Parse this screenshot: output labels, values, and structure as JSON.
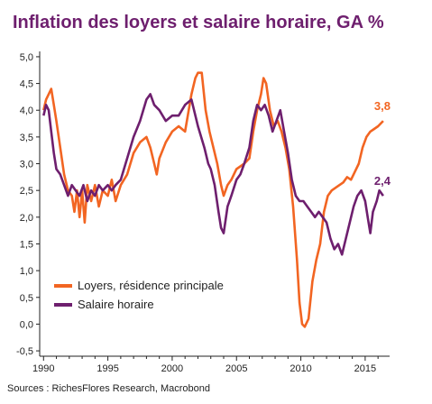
{
  "chart_data": {
    "type": "line",
    "title": "Inflation des loyers et salaire horaire, GA %",
    "source": "Sources : RichesFlores Research, Macrobond",
    "xlabel": "",
    "ylabel": "",
    "xlim": [
      1989.7,
      2016.9
    ],
    "ylim": [
      -0.6,
      5.1
    ],
    "yticks": [
      -0.5,
      0.0,
      0.5,
      1.0,
      1.5,
      2.0,
      2.5,
      3.0,
      3.5,
      4.0,
      4.5,
      5.0
    ],
    "ytick_labels": [
      "-0,5",
      "0,0",
      "0,5",
      "1,0",
      "1,5",
      "2,0",
      "2,5",
      "3,0",
      "3,5",
      "4,0",
      "4,5",
      "5,0"
    ],
    "xticks": [
      1990,
      1995,
      2000,
      2005,
      2010,
      2015
    ],
    "xtick_labels": [
      "1990",
      "1995",
      "2000",
      "2005",
      "2010",
      "2015"
    ],
    "legend_position": "lower-left",
    "series": [
      {
        "name": "Loyers, résidence principale",
        "color": "#f26522",
        "end_label": "3,8",
        "points": [
          [
            1990.0,
            4.0
          ],
          [
            1990.2,
            4.2
          ],
          [
            1990.4,
            4.3
          ],
          [
            1990.6,
            4.4
          ],
          [
            1990.8,
            4.1
          ],
          [
            1991.0,
            3.8
          ],
          [
            1991.3,
            3.3
          ],
          [
            1991.6,
            2.8
          ],
          [
            1991.9,
            2.5
          ],
          [
            1992.2,
            2.4
          ],
          [
            1992.4,
            2.1
          ],
          [
            1992.6,
            2.5
          ],
          [
            1992.8,
            2.0
          ],
          [
            1993.0,
            2.5
          ],
          [
            1993.2,
            1.9
          ],
          [
            1993.4,
            2.6
          ],
          [
            1993.7,
            2.3
          ],
          [
            1994.0,
            2.6
          ],
          [
            1994.3,
            2.2
          ],
          [
            1994.6,
            2.5
          ],
          [
            1995.0,
            2.4
          ],
          [
            1995.3,
            2.7
          ],
          [
            1995.6,
            2.3
          ],
          [
            1996.0,
            2.6
          ],
          [
            1996.5,
            2.8
          ],
          [
            1997.0,
            3.2
          ],
          [
            1997.5,
            3.4
          ],
          [
            1998.0,
            3.5
          ],
          [
            1998.3,
            3.3
          ],
          [
            1998.6,
            3.0
          ],
          [
            1998.8,
            2.8
          ],
          [
            1999.0,
            3.1
          ],
          [
            1999.5,
            3.4
          ],
          [
            2000.0,
            3.6
          ],
          [
            2000.5,
            3.7
          ],
          [
            2001.0,
            3.6
          ],
          [
            2001.5,
            4.3
          ],
          [
            2001.8,
            4.6
          ],
          [
            2002.0,
            4.7
          ],
          [
            2002.3,
            4.7
          ],
          [
            2002.6,
            4.0
          ],
          [
            2002.9,
            3.6
          ],
          [
            2003.2,
            3.3
          ],
          [
            2003.5,
            3.0
          ],
          [
            2003.8,
            2.6
          ],
          [
            2004.0,
            2.4
          ],
          [
            2004.3,
            2.6
          ],
          [
            2004.6,
            2.7
          ],
          [
            2005.0,
            2.9
          ],
          [
            2005.3,
            2.95
          ],
          [
            2005.6,
            3.0
          ],
          [
            2006.0,
            3.1
          ],
          [
            2006.3,
            3.6
          ],
          [
            2006.6,
            4.0
          ],
          [
            2006.9,
            4.3
          ],
          [
            2007.1,
            4.6
          ],
          [
            2007.3,
            4.5
          ],
          [
            2007.6,
            4.0
          ],
          [
            2007.9,
            3.7
          ],
          [
            2008.2,
            3.8
          ],
          [
            2008.5,
            3.6
          ],
          [
            2008.8,
            3.3
          ],
          [
            2009.1,
            2.9
          ],
          [
            2009.4,
            2.2
          ],
          [
            2009.7,
            1.2
          ],
          [
            2009.9,
            0.4
          ],
          [
            2010.1,
            0.0
          ],
          [
            2010.3,
            -0.05
          ],
          [
            2010.6,
            0.1
          ],
          [
            2010.9,
            0.8
          ],
          [
            2011.2,
            1.2
          ],
          [
            2011.5,
            1.5
          ],
          [
            2011.8,
            2.1
          ],
          [
            2012.1,
            2.4
          ],
          [
            2012.4,
            2.5
          ],
          [
            2012.7,
            2.55
          ],
          [
            2013.0,
            2.6
          ],
          [
            2013.3,
            2.65
          ],
          [
            2013.6,
            2.75
          ],
          [
            2013.9,
            2.7
          ],
          [
            2014.2,
            2.85
          ],
          [
            2014.5,
            3.0
          ],
          [
            2014.8,
            3.3
          ],
          [
            2015.1,
            3.5
          ],
          [
            2015.4,
            3.6
          ],
          [
            2015.7,
            3.65
          ],
          [
            2016.0,
            3.7
          ],
          [
            2016.4,
            3.8
          ]
        ]
      },
      {
        "name": "Salaire horaire",
        "color": "#6e1f6e",
        "end_label": "2,4",
        "points": [
          [
            1990.0,
            3.9
          ],
          [
            1990.2,
            4.1
          ],
          [
            1990.4,
            4.0
          ],
          [
            1990.6,
            3.6
          ],
          [
            1990.8,
            3.2
          ],
          [
            1991.0,
            2.9
          ],
          [
            1991.3,
            2.8
          ],
          [
            1991.6,
            2.6
          ],
          [
            1991.9,
            2.4
          ],
          [
            1992.2,
            2.6
          ],
          [
            1992.5,
            2.5
          ],
          [
            1992.8,
            2.4
          ],
          [
            1993.1,
            2.6
          ],
          [
            1993.4,
            2.3
          ],
          [
            1993.7,
            2.5
          ],
          [
            1994.0,
            2.4
          ],
          [
            1994.3,
            2.6
          ],
          [
            1994.6,
            2.5
          ],
          [
            1995.0,
            2.6
          ],
          [
            1995.3,
            2.5
          ],
          [
            1995.6,
            2.6
          ],
          [
            1996.0,
            2.7
          ],
          [
            1996.5,
            3.1
          ],
          [
            1997.0,
            3.5
          ],
          [
            1997.5,
            3.8
          ],
          [
            1998.0,
            4.2
          ],
          [
            1998.3,
            4.3
          ],
          [
            1998.6,
            4.1
          ],
          [
            1999.0,
            4.0
          ],
          [
            1999.5,
            3.8
          ],
          [
            2000.0,
            3.9
          ],
          [
            2000.5,
            3.9
          ],
          [
            2001.0,
            4.1
          ],
          [
            2001.5,
            4.2
          ],
          [
            2002.0,
            3.7
          ],
          [
            2002.5,
            3.3
          ],
          [
            2002.8,
            3.0
          ],
          [
            2003.0,
            2.9
          ],
          [
            2003.3,
            2.6
          ],
          [
            2003.6,
            2.1
          ],
          [
            2003.8,
            1.8
          ],
          [
            2004.0,
            1.7
          ],
          [
            2004.3,
            2.2
          ],
          [
            2004.6,
            2.4
          ],
          [
            2005.0,
            2.7
          ],
          [
            2005.3,
            2.8
          ],
          [
            2005.6,
            3.0
          ],
          [
            2006.0,
            3.3
          ],
          [
            2006.3,
            3.8
          ],
          [
            2006.6,
            4.1
          ],
          [
            2006.9,
            4.0
          ],
          [
            2007.2,
            4.1
          ],
          [
            2007.5,
            3.9
          ],
          [
            2007.8,
            3.6
          ],
          [
            2008.1,
            3.8
          ],
          [
            2008.4,
            4.0
          ],
          [
            2008.7,
            3.6
          ],
          [
            2009.0,
            3.2
          ],
          [
            2009.3,
            2.7
          ],
          [
            2009.6,
            2.4
          ],
          [
            2009.9,
            2.3
          ],
          [
            2010.2,
            2.3
          ],
          [
            2010.5,
            2.2
          ],
          [
            2010.8,
            2.1
          ],
          [
            2011.1,
            2.0
          ],
          [
            2011.4,
            2.1
          ],
          [
            2011.7,
            2.0
          ],
          [
            2012.0,
            1.9
          ],
          [
            2012.3,
            1.6
          ],
          [
            2012.6,
            1.4
          ],
          [
            2012.9,
            1.5
          ],
          [
            2013.2,
            1.3
          ],
          [
            2013.5,
            1.6
          ],
          [
            2013.8,
            1.9
          ],
          [
            2014.1,
            2.2
          ],
          [
            2014.4,
            2.4
          ],
          [
            2014.7,
            2.5
          ],
          [
            2015.0,
            2.3
          ],
          [
            2015.2,
            2.0
          ],
          [
            2015.4,
            1.7
          ],
          [
            2015.6,
            2.1
          ],
          [
            2015.9,
            2.3
          ],
          [
            2016.1,
            2.5
          ],
          [
            2016.4,
            2.4
          ]
        ]
      }
    ]
  }
}
